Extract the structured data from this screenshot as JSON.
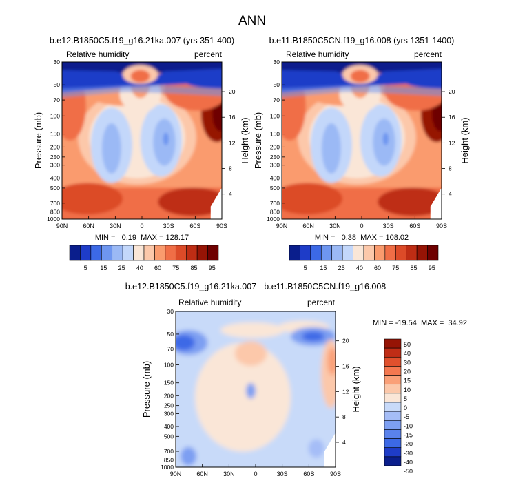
{
  "title": "ANN",
  "colors": {
    "abs": [
      "#0a1e8c",
      "#1e3cc8",
      "#3c69e6",
      "#6e96f0",
      "#9bb9f5",
      "#c3d7fa",
      "#fae6d7",
      "#fcc8aa",
      "#fa9b6e",
      "#f06e46",
      "#dc4b28",
      "#be2d14",
      "#961405",
      "#6e0000"
    ],
    "diff": [
      "#0a1e8c",
      "#1e3cc8",
      "#3c69e6",
      "#5a82ec",
      "#7d9ff2",
      "#a5bdf7",
      "#c8daf9",
      "#fae6d7",
      "#fcc8aa",
      "#faa078",
      "#f47850",
      "#e0502d",
      "#c02d16",
      "#961405"
    ]
  },
  "panels": [
    {
      "title": "b.e12.B1850C5.f19_g16.21ka.007 (yrs 351-400)",
      "left_label": "Relative humidity",
      "right_label": "percent",
      "ylabel": "Pressure (mb)",
      "ylabel_right": "Height (km)",
      "stats": "MIN =   0.19  MAX = 128.17",
      "min": 0.19,
      "max": 128.17
    },
    {
      "title": "b.e11.B1850C5CN.f19_g16.008 (yrs 1351-1400)",
      "left_label": "Relative humidity",
      "right_label": "percent",
      "ylabel": "Pressure (mb)",
      "ylabel_right": "Height (km)",
      "stats": "MIN =   0.38  MAX = 108.02",
      "min": 0.38,
      "max": 108.02
    },
    {
      "title": "b.e12.B1850C5.f19_g16.21ka.007 - b.e11.B1850C5CN.f19_g16.008",
      "left_label": "Relative humidity",
      "right_label": "percent",
      "ylabel": "Pressure (mb)",
      "ylabel_right": "Height (km)",
      "stats": "MIN = -19.54  MAX =  34.92",
      "min": -19.54,
      "max": 34.92
    }
  ],
  "chart_data": {
    "type": "heatmap",
    "x_ticks": [
      "90N",
      "60N",
      "30N",
      "0",
      "30S",
      "60S",
      "90S"
    ],
    "y_ticks": [
      "30",
      "50",
      "70",
      "100",
      "150",
      "200",
      "250",
      "300",
      "400",
      "500",
      "700",
      "850",
      "1000"
    ],
    "y_ticks_values": [
      30,
      50,
      70,
      100,
      150,
      200,
      250,
      300,
      400,
      500,
      700,
      850,
      1000
    ],
    "height_ticks": [
      "20",
      "16",
      "12",
      "8",
      "4"
    ],
    "height_ticks_values": [
      20,
      16,
      12,
      8,
      4
    ],
    "abs_colorbar_labels": [
      "5",
      "15",
      "25",
      "40",
      "60",
      "75",
      "85",
      "95"
    ],
    "diff_colorbar_labels": [
      "50",
      "40",
      "30",
      "20",
      "15",
      "10",
      "5",
      "0",
      "-5",
      "-10",
      "-15",
      "-20",
      "-30",
      "-40",
      "-50"
    ]
  }
}
